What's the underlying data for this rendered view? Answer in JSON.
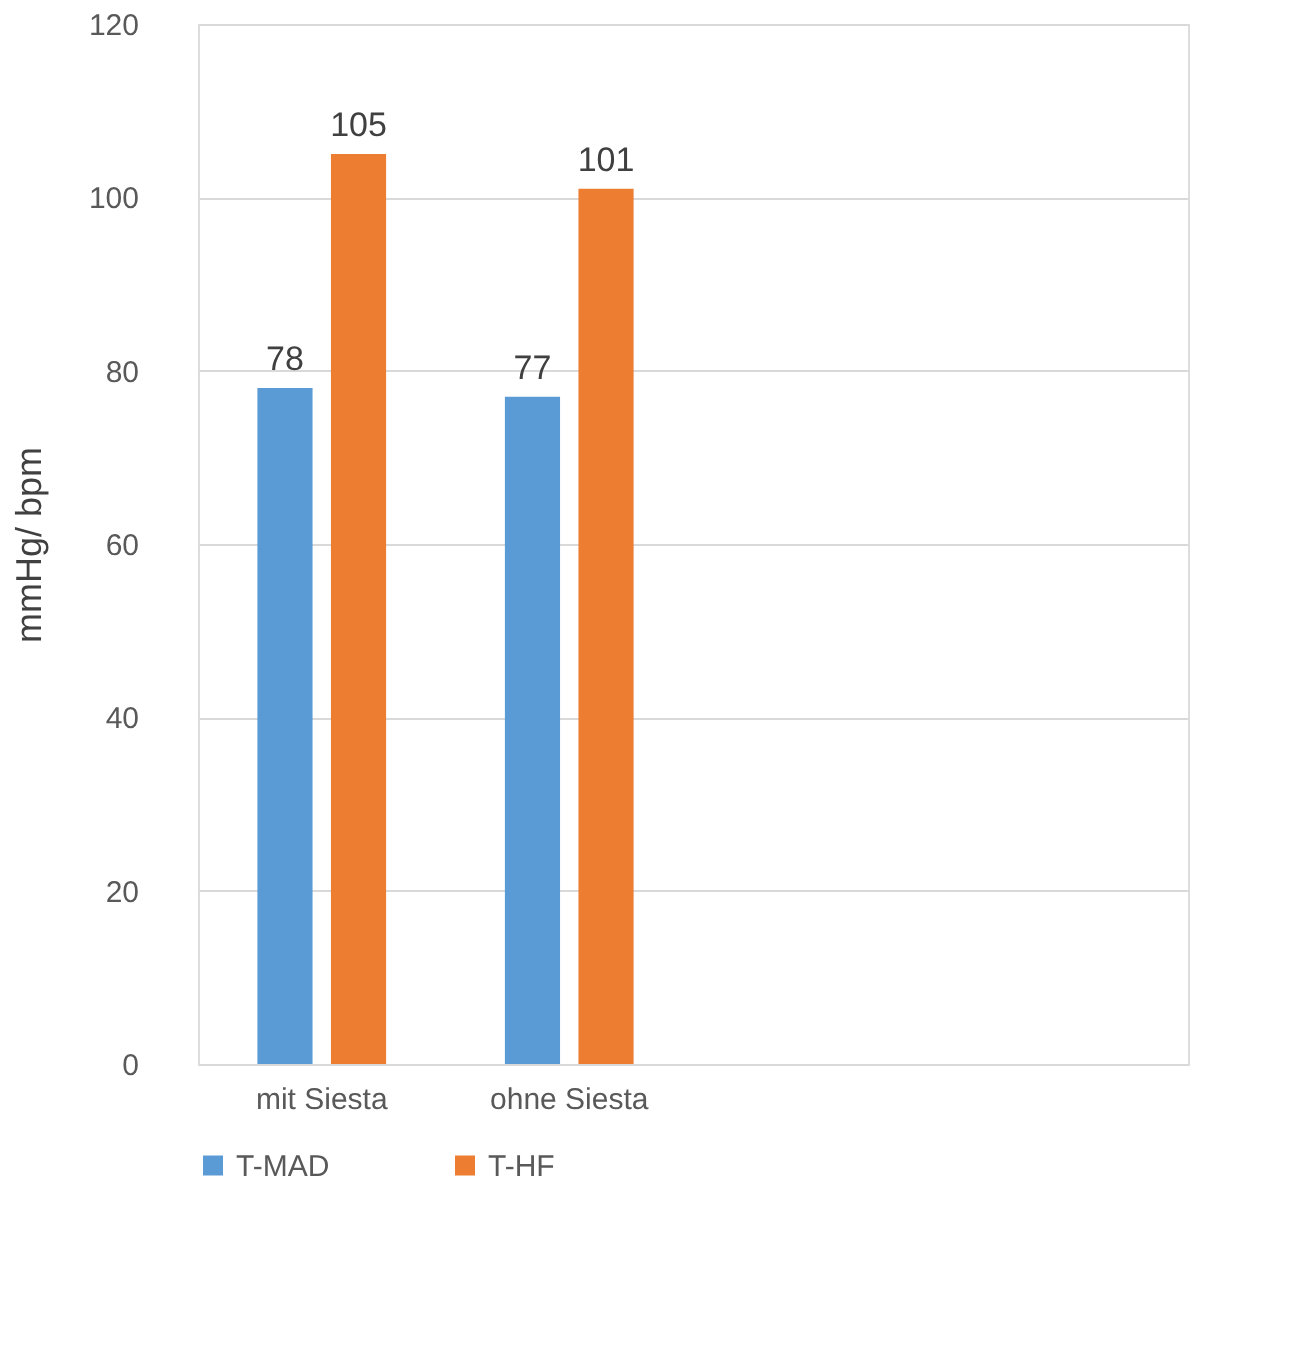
{
  "chart_data": {
    "type": "bar",
    "ylabel": "mmHg/ bpm",
    "categories": [
      "mit Siesta",
      "ohne Siesta",
      null,
      null
    ],
    "series": [
      {
        "name": "T-MAD",
        "color": "#5b9bd5",
        "values": [
          78,
          77,
          null,
          null
        ]
      },
      {
        "name": "T-HF",
        "color": "#ed7d31",
        "values": [
          105,
          101,
          null,
          null
        ]
      }
    ],
    "ylim": [
      0,
      120
    ],
    "yticks": [
      0,
      20,
      40,
      60,
      80,
      100,
      120
    ],
    "grid": "y",
    "legend": "bottom",
    "data_labels": true
  }
}
